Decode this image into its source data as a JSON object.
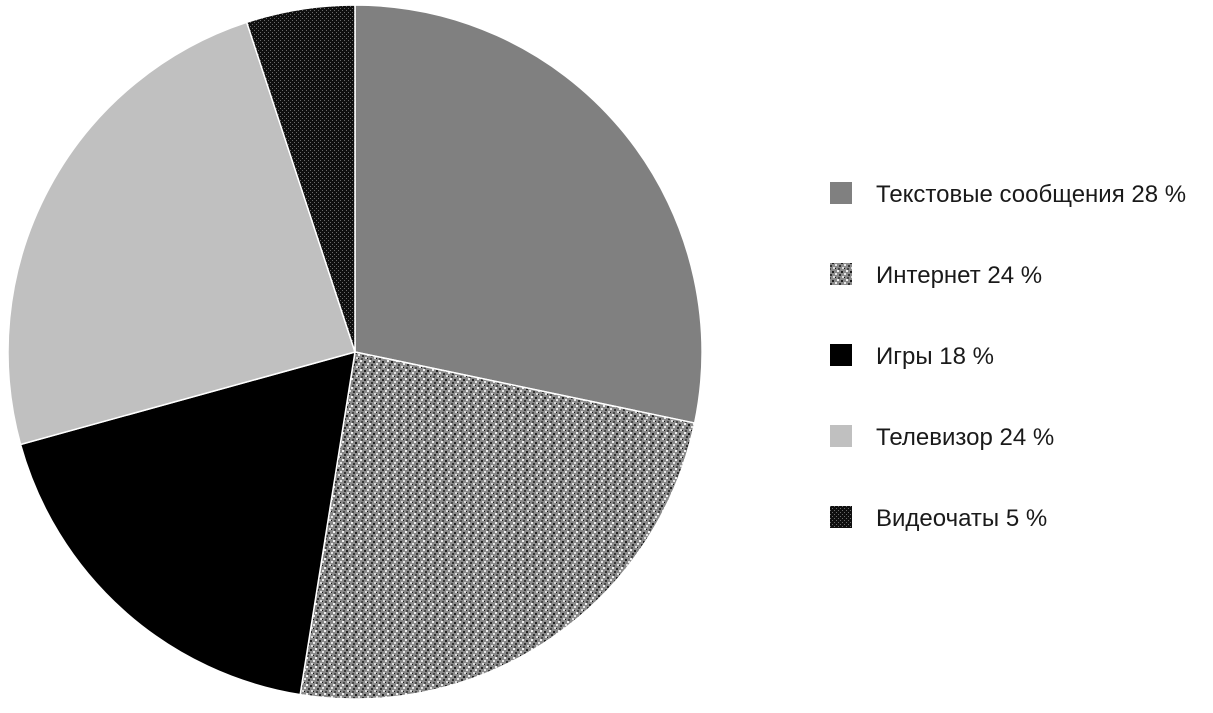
{
  "chart_data": {
    "type": "pie",
    "legend_position": "right",
    "slices": [
      {
        "label": "Текстовые сообщения",
        "value": 28,
        "value_label": "28 %",
        "color": "#808080",
        "pattern": "solid"
      },
      {
        "label": "Интернет",
        "value": 24,
        "value_label": "24 %",
        "color": "#8c8c8c",
        "pattern": "speckled"
      },
      {
        "label": "Игры",
        "value": 18,
        "value_label": "18 %",
        "color": "#000000",
        "pattern": "solid"
      },
      {
        "label": "Телевизор",
        "value": 24,
        "value_label": "24 %",
        "color": "#c0c0c0",
        "pattern": "solid"
      },
      {
        "label": "Видеочаты",
        "value": 5,
        "value_label": "5 %",
        "color": "#1a1a1a",
        "pattern": "dotted"
      }
    ]
  }
}
